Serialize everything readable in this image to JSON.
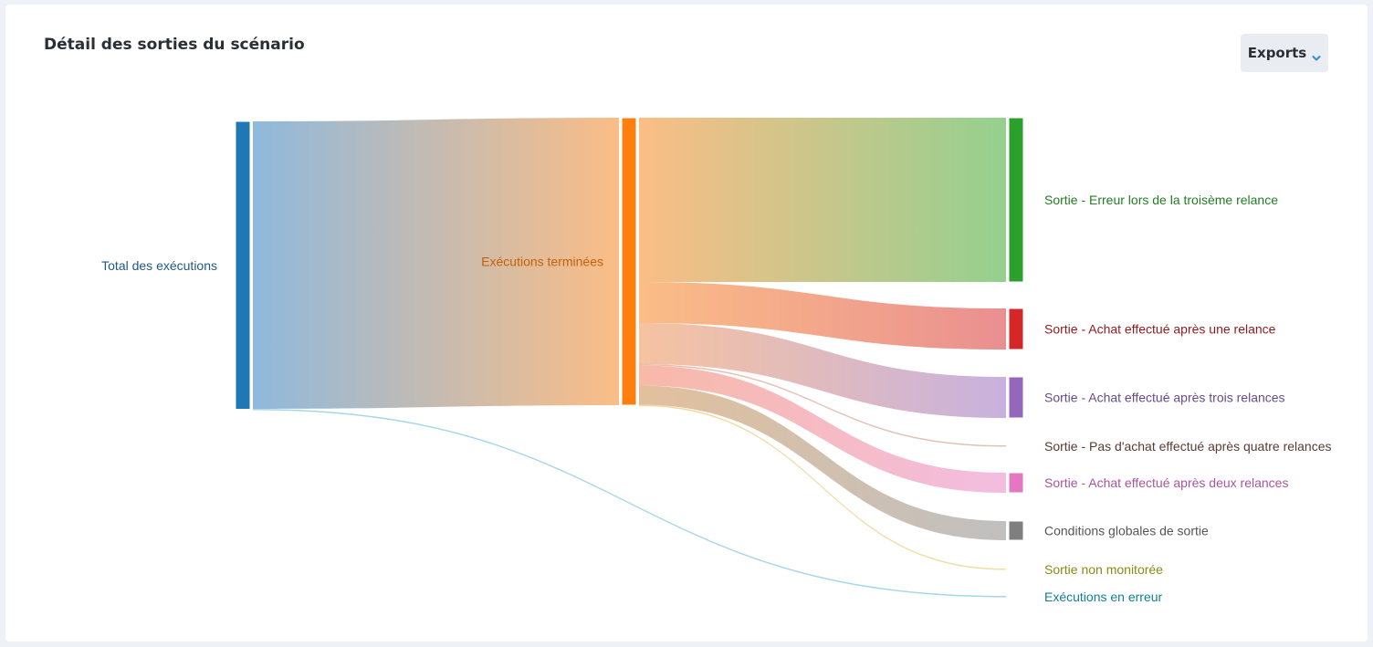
{
  "header": {
    "title": "Détail des sorties du scénario",
    "exports_label": "Exports",
    "exports_icon": "chevron-down-icon"
  },
  "chart_data": {
    "type": "sankey",
    "nodes": [
      {
        "id": "total",
        "label": "Total des exécutions",
        "color": "#1f77b4",
        "column": 0
      },
      {
        "id": "terminees",
        "label": "Exécutions terminées",
        "color": "#ff7f0e",
        "column": 1
      },
      {
        "id": "erreur3",
        "label": "Sortie - Erreur lors de la troisème relance",
        "color": "#2ca02c",
        "column": 2
      },
      {
        "id": "achat1",
        "label": "Sortie - Achat effectué après une relance",
        "color": "#d62728",
        "column": 2
      },
      {
        "id": "achat3",
        "label": "Sortie - Achat effectué après trois relances",
        "color": "#9467bd",
        "column": 2
      },
      {
        "id": "pasachat4",
        "label": "Sortie - Pas d'achat effectué après quatre relances",
        "color": "#8c564b",
        "column": 2
      },
      {
        "id": "achat2",
        "label": "Sortie - Achat effectué après deux relances",
        "color": "#e377c2",
        "column": 2
      },
      {
        "id": "conditions",
        "label": "Conditions globales de sortie",
        "color": "#7f7f7f",
        "column": 2
      },
      {
        "id": "nonmonitoree",
        "label": "Sortie non monitorée",
        "color": "#bcbd22",
        "column": 2
      },
      {
        "id": "enerreur",
        "label": "Exécutions en erreur",
        "color": "#17becf",
        "column": 2
      }
    ],
    "links": [
      {
        "source": "total",
        "target": "terminees",
        "value": 315
      },
      {
        "source": "total",
        "target": "enerreur",
        "value": 0.5
      },
      {
        "source": "terminees",
        "target": "erreur3",
        "value": 180
      },
      {
        "source": "terminees",
        "target": "achat1",
        "value": 45
      },
      {
        "source": "terminees",
        "target": "achat3",
        "value": 45
      },
      {
        "source": "terminees",
        "target": "pasachat4",
        "value": 1
      },
      {
        "source": "terminees",
        "target": "achat2",
        "value": 22
      },
      {
        "source": "terminees",
        "target": "conditions",
        "value": 21
      },
      {
        "source": "terminees",
        "target": "nonmonitoree",
        "value": 1
      }
    ]
  }
}
